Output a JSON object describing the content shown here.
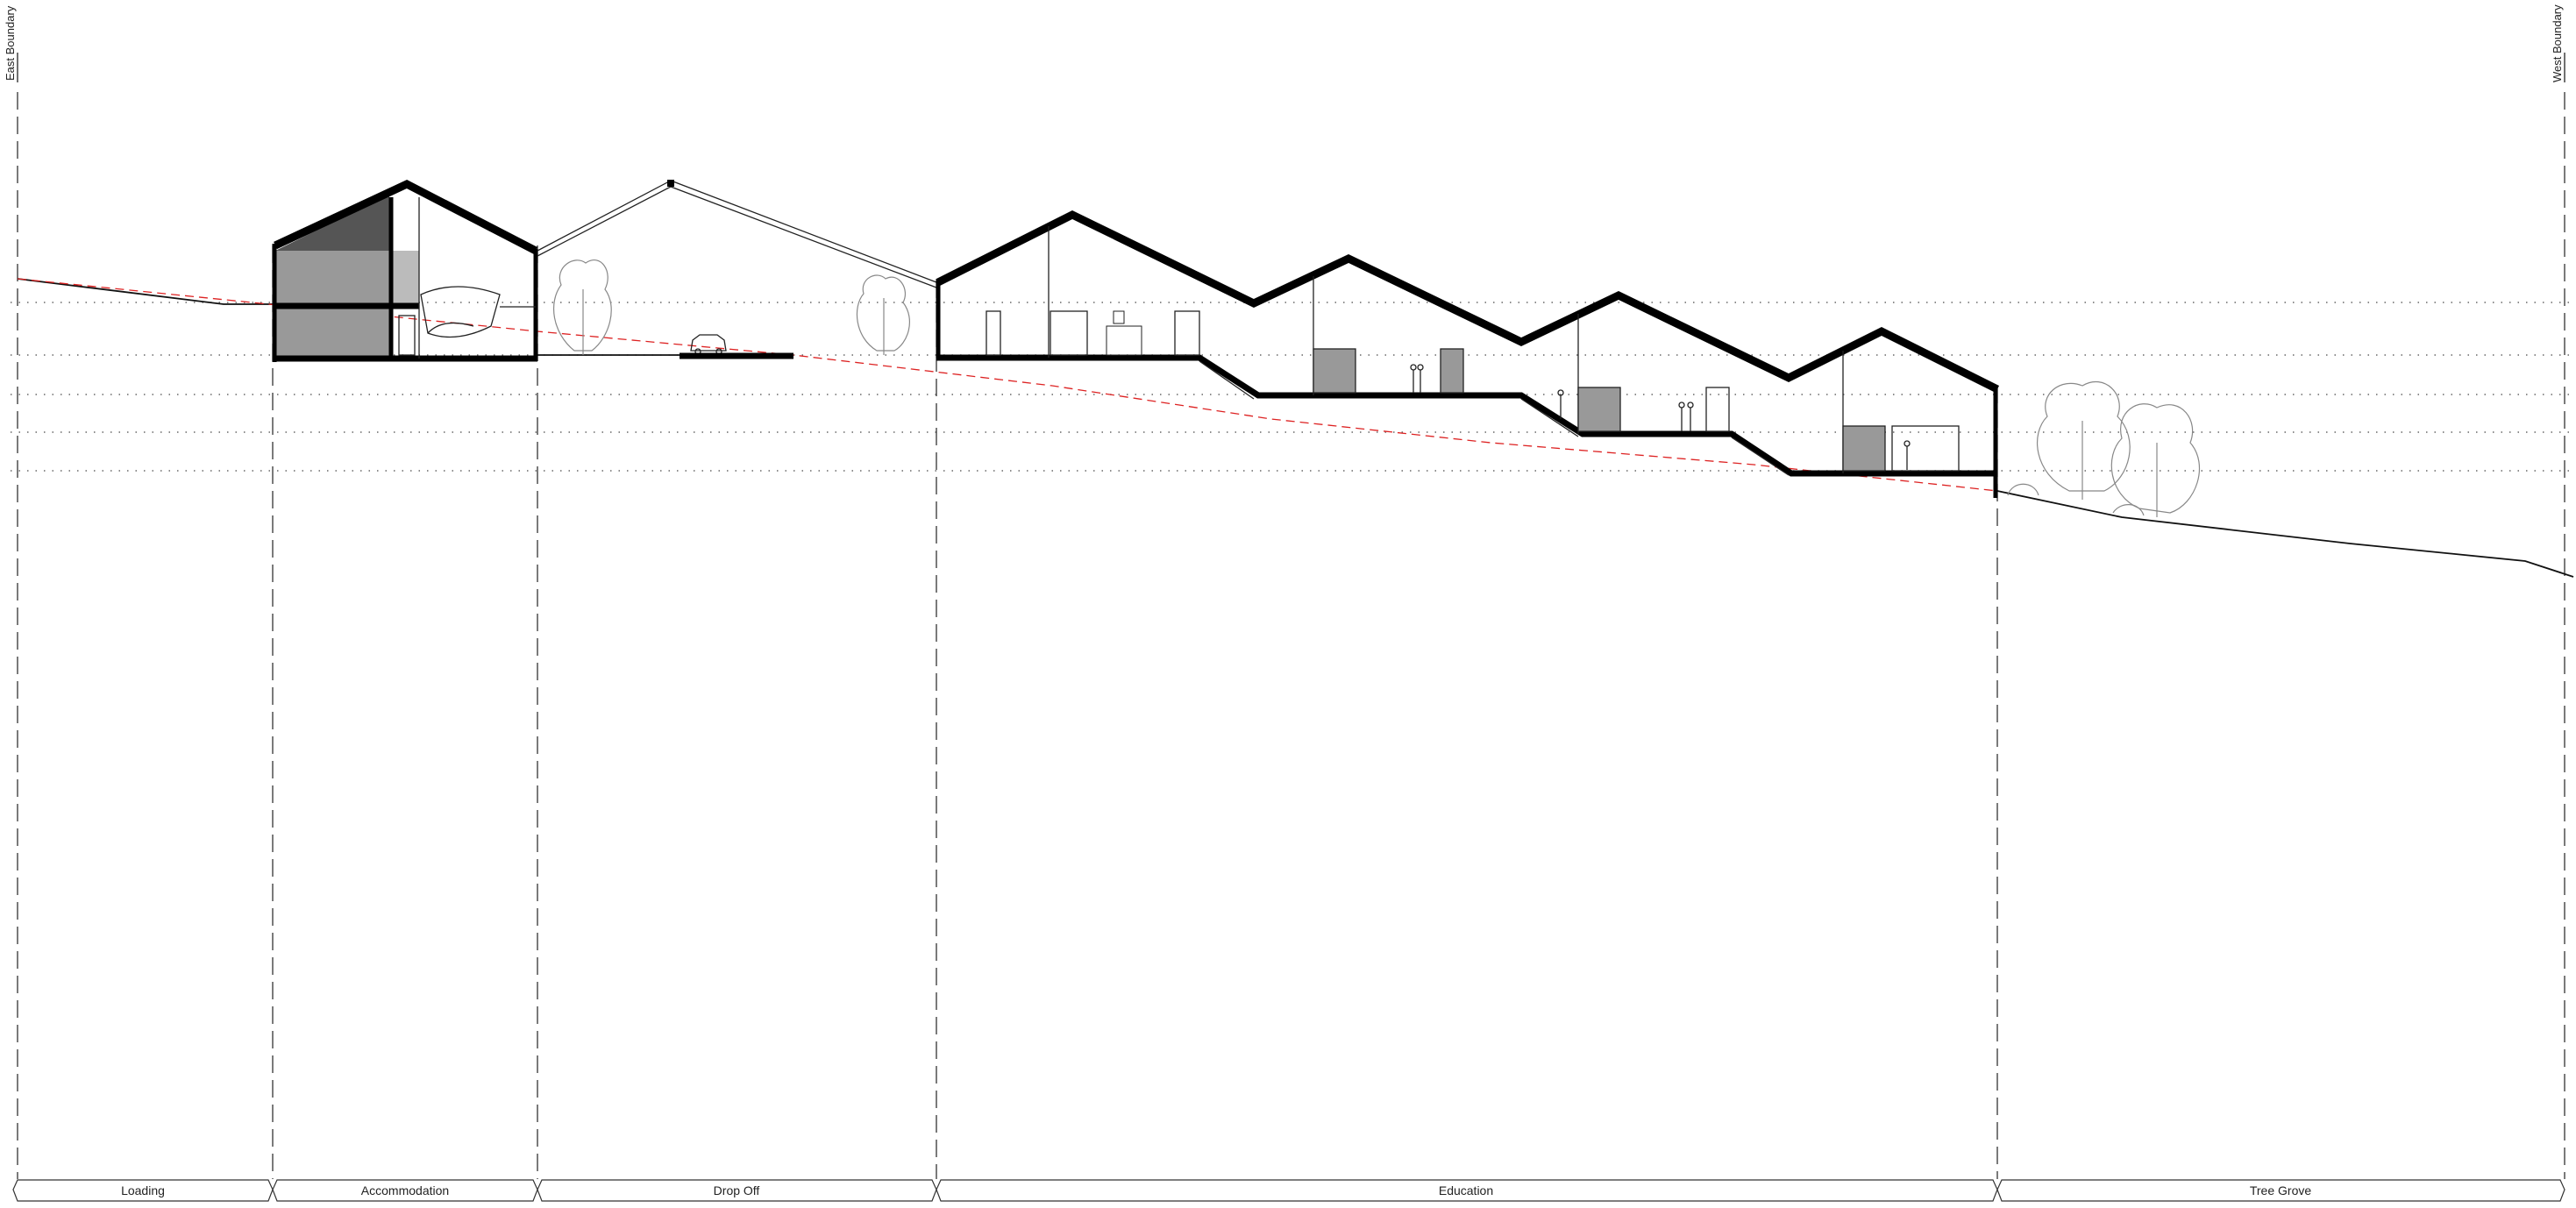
{
  "boundaries": {
    "east": "East Boundary",
    "west": "West Boundary"
  },
  "zones": [
    {
      "label": "Loading"
    },
    {
      "label": "Accommodation"
    },
    {
      "label": "Drop Off"
    },
    {
      "label": "Education"
    },
    {
      "label": "Tree Grove"
    }
  ],
  "colors": {
    "line": "#000000",
    "setback_line": "#dd2222",
    "vegetation": "#888888",
    "fill_dark": "#555555",
    "fill_mid": "#999999"
  }
}
